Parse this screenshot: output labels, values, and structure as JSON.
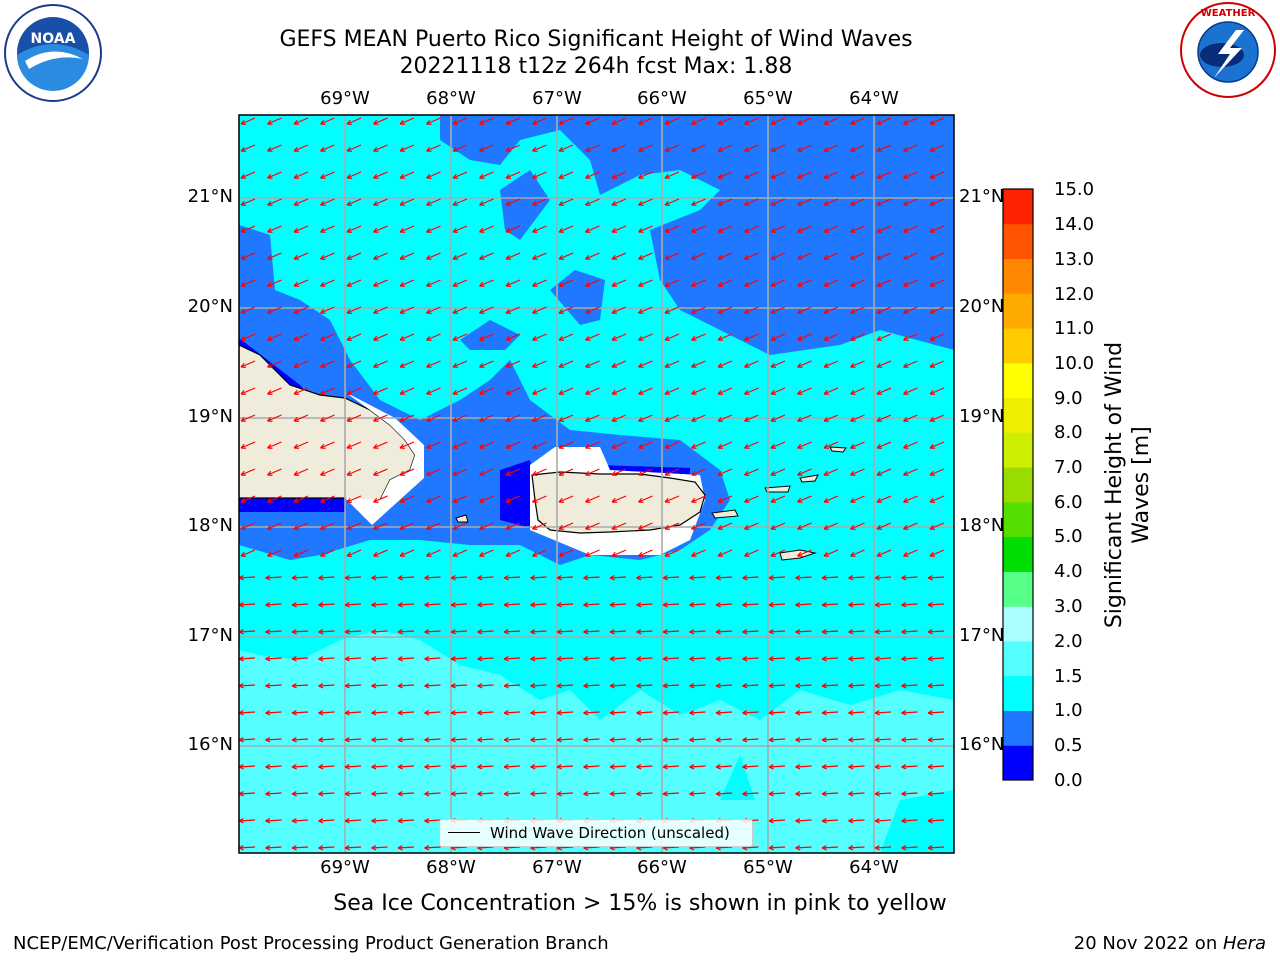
{
  "title": {
    "line1": "GEFS MEAN Puerto Rico Significant Height of Wind Waves",
    "line2": "20221118 t12z 264h fcst   Max: 1.88"
  },
  "logos": {
    "left": "NOAA",
    "right": "NATIONAL WEATHER SERVICE"
  },
  "map": {
    "lon_labels": [
      "69°W",
      "68°W",
      "67°W",
      "66°W",
      "65°W",
      "64°W"
    ],
    "lat_labels": [
      "21°N",
      "20°N",
      "19°N",
      "18°N",
      "17°N",
      "16°N"
    ],
    "legend": "Wind Wave Direction (unscaled)",
    "arrow_color": "#ff0000",
    "land_color": "#efecdc",
    "wind_wave_direction": "toward west-southwest"
  },
  "colorbar": {
    "label": "Significant Height of Wind Waves [m]",
    "ticks": [
      "15.0",
      "14.0",
      "13.0",
      "12.0",
      "11.0",
      "10.0",
      "9.0",
      "8.0",
      "7.0",
      "6.0",
      "5.0",
      "4.0",
      "3.0",
      "2.0",
      "1.5",
      "1.0",
      "0.5",
      "0.0"
    ],
    "colors": [
      "#0000ff",
      "#1f78ff",
      "#00ffff",
      "#55ffff",
      "#aaffff",
      "#55ff88",
      "#00dd00",
      "#55dd00",
      "#99dd00",
      "#ccee00",
      "#eeee00",
      "#ffff00",
      "#ffcc00",
      "#ffaa00",
      "#ff8800",
      "#ff5500",
      "#ff2200"
    ]
  },
  "footer": {
    "ice_note": "Sea Ice Concentration > 15% is shown in pink to yellow",
    "credit": "NCEP/EMC/Verification Post Processing Product Generation Branch",
    "date": "20 Nov 2022 on ",
    "host": "Hera"
  }
}
